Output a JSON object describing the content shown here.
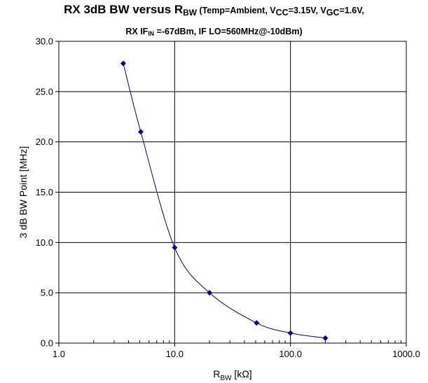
{
  "title": {
    "main_prefix": "RX 3dB BW versus R",
    "main_sub": "BW",
    "cond_open": " (Temp=Ambient, V",
    "vcc_sub": "CC",
    "cond_vcc": "=3.15V, V",
    "vgc_sub": "GC",
    "cond_vgc": "=1.6V,",
    "line2_prefix": "RX IF",
    "line2_sub": "IN",
    "line2_rest": " =-67dBm, IF LO=560MHz@-10dBm)"
  },
  "chart_data": {
    "type": "scatter",
    "x_scale": "log",
    "xlim": [
      1.0,
      1000.0
    ],
    "ylim": [
      0.0,
      30.0
    ],
    "x_ticks": [
      "1.0",
      "10.0",
      "100.0",
      "1000.0"
    ],
    "x_tick_values": [
      1,
      10,
      100,
      1000
    ],
    "y_ticks": [
      "0.0",
      "5.0",
      "10.0",
      "15.0",
      "20.0",
      "25.0",
      "30.0"
    ],
    "y_tick_values": [
      0,
      5,
      10,
      15,
      20,
      25,
      30
    ],
    "xlabel_main": "R",
    "xlabel_sub": "BW",
    "xlabel_unit": " [kΩ]",
    "ylabel": "3 dB BW Point [MHz]",
    "grid": true,
    "line_style": "smoothed line with diamond markers",
    "series": [
      {
        "color": "#000080",
        "x": [
          3.6,
          5.1,
          10,
          20,
          51,
          100,
          200
        ],
        "y": [
          27.8,
          21.0,
          9.5,
          5.0,
          2.0,
          1.0,
          0.5
        ]
      }
    ]
  }
}
